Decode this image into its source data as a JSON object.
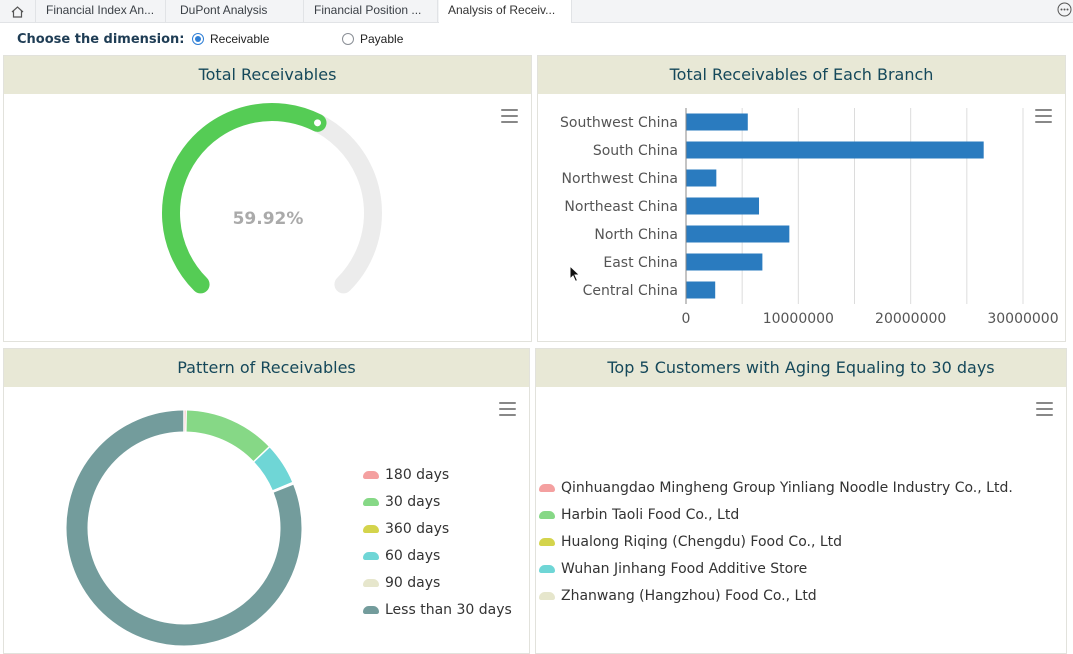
{
  "tabs": [
    {
      "label": "Financial Index An...",
      "active": false
    },
    {
      "label": "DuPont Analysis",
      "active": false
    },
    {
      "label": "Financial Position ...",
      "active": false
    },
    {
      "label": "Analysis of Receiv...",
      "active": true
    }
  ],
  "dimension": {
    "label": "Choose the dimension:",
    "options": [
      {
        "label": "Receivable",
        "selected": true
      },
      {
        "label": "Payable",
        "selected": false
      }
    ]
  },
  "panels": {
    "total_receivables": {
      "title": "Total Receivables",
      "gauge_value": "59.92%",
      "gauge_fraction": 0.5992,
      "gauge_color": "#55cc55"
    },
    "by_branch": {
      "title": "Total Receivables  of Each Branch"
    },
    "pattern": {
      "title": "Pattern of  Receivables"
    },
    "top5": {
      "title": "Top 5 Customers with  Aging Equaling to 30 days"
    }
  },
  "chart_data": [
    {
      "type": "bar",
      "orientation": "horizontal",
      "title": "Total Receivables  of Each Branch",
      "categories": [
        "Southwest China",
        "South China",
        "Northwest China",
        "Northeast China",
        "North China",
        "East China",
        "Central China"
      ],
      "values": [
        5500000,
        26500000,
        2700000,
        6500000,
        9200000,
        6800000,
        2600000
      ],
      "xticks": [
        "0",
        "10000000",
        "20000000",
        "30000000"
      ],
      "xlim": [
        0,
        30000000
      ],
      "color": "#2a7bbf"
    },
    {
      "type": "pie",
      "title": "Pattern of  Receivables",
      "legend": [
        {
          "label": "180 days",
          "color": "#f4a0a0",
          "value": 0.3
        },
        {
          "label": "30 days",
          "color": "#86d886",
          "value": 12.6
        },
        {
          "label": "360 days",
          "color": "#d4d44c",
          "value": 0
        },
        {
          "label": "60 days",
          "color": "#6fd6d6",
          "value": 5.8
        },
        {
          "label": "90 days",
          "color": "#e6e6cc",
          "value": 0.2
        },
        {
          "label": "Less than 30 days",
          "color": "#739c9c",
          "value": 81.1
        }
      ]
    },
    {
      "type": "pie",
      "title": "Top 5 Customers with  Aging Equaling to 30 days",
      "legend": [
        {
          "label": "Qinhuangdao Mingheng Group Yinliang Noodle Industry Co., Ltd.",
          "color": "#f4a0a0"
        },
        {
          "label": "Harbin Taoli Food Co., Ltd",
          "color": "#86d886"
        },
        {
          "label": "Hualong Riqing (Chengdu) Food Co., Ltd",
          "color": "#d4d44c"
        },
        {
          "label": "Wuhan Jinhang Food Additive Store",
          "color": "#6fd6d6"
        },
        {
          "label": "Zhanwang (Hangzhou) Food Co., Ltd",
          "color": "#e6e6cc"
        }
      ]
    }
  ]
}
